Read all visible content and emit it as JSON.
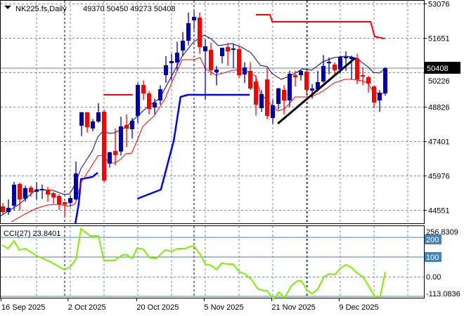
{
  "header": {
    "symbol": "NK225.fs,Daily",
    "ohlc": "49370 50450 49273 50408"
  },
  "current_price_label": "50408",
  "colors": {
    "bull": "#0000b0",
    "bear": "#ff0000",
    "ma_fast": "#000080",
    "ma_slow": "#ff0000",
    "support": "#0000ff",
    "resistance": "#ff0000",
    "trend": "#000000",
    "cci": "#80ee00",
    "level": "#4682b4"
  },
  "chart_data": [
    {
      "type": "candlestick",
      "title": "NK225.fs,Daily",
      "ylim": [
        44201,
        53246
      ],
      "y_ticks": [
        53076,
        51651,
        50226,
        48826,
        47401,
        45976,
        44551
      ],
      "x_ticks": [
        {
          "i": -0.3,
          "label": "16 Sep 2025"
        },
        {
          "i": 11.6,
          "label": "2 Oct 2025"
        },
        {
          "i": 23.8,
          "label": "20 Oct 2025"
        },
        {
          "i": 35.8,
          "label": "5 Nov 2025"
        },
        {
          "i": 47.8,
          "label": "21 Nov 2025"
        },
        {
          "i": 59.8,
          "label": "9 Dec 2025"
        }
      ],
      "candles": [
        [
          44695,
          44840,
          44376,
          44463
        ],
        [
          44463,
          44985,
          44347,
          44637
        ],
        [
          44724,
          45710,
          44550,
          45594
        ],
        [
          45623,
          45680,
          44550,
          44985
        ],
        [
          45014,
          45550,
          44900,
          45449
        ],
        [
          45478,
          45550,
          45100,
          45275
        ],
        [
          45304,
          45700,
          44985,
          45391
        ],
        [
          45362,
          45600,
          45000,
          45420
        ],
        [
          45391,
          45500,
          44900,
          45188
        ],
        [
          45246,
          45300,
          44800,
          45072
        ],
        [
          45130,
          45200,
          44550,
          44782
        ],
        [
          44869,
          44900,
          44230,
          44782
        ],
        [
          44840,
          45150,
          44700,
          45043
        ],
        [
          44985,
          46550,
          44950,
          46058
        ],
        [
          48030,
          48600,
          47600,
          48581
        ],
        [
          48581,
          48600,
          47750,
          47972
        ],
        [
          47914,
          48300,
          47800,
          48204
        ],
        [
          48204,
          48958,
          48150,
          48581
        ],
        [
          48610,
          48700,
          45700,
          45768
        ],
        [
          46464,
          46950,
          46300,
          46935
        ],
        [
          46993,
          47914,
          46400,
          46819
        ],
        [
          46964,
          48400,
          46800,
          48001
        ],
        [
          48059,
          48500,
          47150,
          47914
        ],
        [
          47885,
          48350,
          47500,
          48233
        ],
        [
          48436,
          49800,
          48150,
          49712
        ],
        [
          49712,
          49900,
          49100,
          49364
        ],
        [
          49364,
          49450,
          48500,
          48726
        ],
        [
          48784,
          49150,
          48500,
          48987
        ],
        [
          49074,
          49700,
          48900,
          49538
        ],
        [
          50118,
          50900,
          49800,
          50524
        ],
        [
          50611,
          51000,
          49900,
          50698
        ],
        [
          50640,
          51500,
          50300,
          51046
        ],
        [
          51133,
          51900,
          50900,
          51539
        ],
        [
          51539,
          52700,
          51350,
          52264
        ],
        [
          52380,
          52750,
          52000,
          52525
        ],
        [
          52496,
          52700,
          51000,
          51278
        ],
        [
          51104,
          51600,
          49100,
          51307
        ],
        [
          51162,
          51450,
          50100,
          50321
        ],
        [
          50234,
          50500,
          49700,
          50350
        ],
        [
          50901,
          51250,
          50600,
          51249
        ],
        [
          51278,
          51450,
          50500,
          51104
        ],
        [
          51162,
          51400,
          50400,
          51220
        ],
        [
          51191,
          51300,
          50000,
          50118
        ],
        [
          50147,
          50650,
          49800,
          50437
        ],
        [
          50292,
          50650,
          49500,
          49567
        ],
        [
          49857,
          50100,
          48450,
          48900
        ],
        [
          48755,
          49500,
          48600,
          49335
        ],
        [
          49944,
          50400,
          48300,
          48436
        ],
        [
          48349,
          49100,
          48100,
          48871
        ],
        [
          48929,
          49600,
          48700,
          49567
        ],
        [
          49509,
          49700,
          48500,
          49074
        ],
        [
          49074,
          50300,
          48800,
          50176
        ],
        [
          50118,
          50300,
          49650,
          50031
        ],
        [
          50118,
          50350,
          49900,
          50292
        ],
        [
          50263,
          50350,
          49300,
          49509
        ],
        [
          49480,
          49750,
          49150,
          49567
        ],
        [
          49538,
          50300,
          49450,
          49828
        ],
        [
          49857,
          50950,
          49800,
          50495
        ],
        [
          50611,
          50850,
          50150,
          50669
        ],
        [
          50553,
          50650,
          50150,
          50321
        ],
        [
          50350,
          50920,
          50200,
          50872
        ],
        [
          50814,
          51100,
          50300,
          50872
        ],
        [
          50785,
          50920,
          49944,
          50872
        ],
        [
          50814,
          51000,
          49750,
          49944
        ],
        [
          50118,
          50450,
          49700,
          50060
        ],
        [
          50031,
          50100,
          49400,
          49770
        ],
        [
          49654,
          49700,
          48750,
          48987
        ],
        [
          49074,
          49500,
          48600,
          49393
        ],
        [
          49370,
          50450,
          49273,
          50408
        ]
      ],
      "ma_fast": [
        [
          -0.5,
          44289
        ],
        [
          2.9,
          44782
        ],
        [
          5.9,
          45391
        ],
        [
          8.9,
          45362
        ],
        [
          10.9,
          45188
        ],
        [
          11.9,
          45217
        ],
        [
          12.9,
          45623
        ],
        [
          13.9,
          46261
        ],
        [
          15.9,
          46986
        ],
        [
          16.9,
          47566
        ],
        [
          17.9,
          47827
        ],
        [
          18.9,
          47711
        ],
        [
          19.9,
          47740
        ],
        [
          21.9,
          47972
        ],
        [
          23.3,
          48291
        ],
        [
          25.9,
          48842
        ],
        [
          27.9,
          49161
        ],
        [
          29.9,
          50031
        ],
        [
          31.9,
          50901
        ],
        [
          33.9,
          51481
        ],
        [
          35.8,
          51771
        ],
        [
          37,
          51626
        ],
        [
          38.3,
          51336
        ],
        [
          40.8,
          51423
        ],
        [
          42.4,
          51278
        ],
        [
          44.1,
          51046
        ],
        [
          45.8,
          50524
        ],
        [
          47,
          50466
        ],
        [
          47.9,
          50176
        ],
        [
          49.5,
          49944
        ],
        [
          51.1,
          50089
        ],
        [
          53.3,
          50379
        ],
        [
          54.9,
          50321
        ],
        [
          56.9,
          50669
        ],
        [
          58.9,
          50843
        ],
        [
          60.9,
          50901
        ],
        [
          61.9,
          50872
        ],
        [
          62.9,
          50814
        ],
        [
          64.9,
          50466
        ],
        [
          65.9,
          50234
        ],
        [
          66.9,
          50205
        ],
        [
          67.9,
          50379
        ]
      ],
      "ma_slow": [
        [
          1.5,
          44057
        ],
        [
          3.9,
          44376
        ],
        [
          5.9,
          44608
        ],
        [
          7.9,
          44753
        ],
        [
          9.9,
          44782
        ],
        [
          11.9,
          44695
        ],
        [
          12.9,
          44811
        ],
        [
          13.9,
          45681
        ],
        [
          15.9,
          46406
        ],
        [
          16.9,
          46783
        ],
        [
          17.9,
          46812
        ],
        [
          18.9,
          46493
        ],
        [
          19.9,
          46493
        ],
        [
          20.9,
          46638
        ],
        [
          21.9,
          46870
        ],
        [
          22.9,
          46899
        ],
        [
          23.9,
          47421
        ],
        [
          24.9,
          48001
        ],
        [
          26.9,
          48436
        ],
        [
          28.9,
          49161
        ],
        [
          29.9,
          49741
        ],
        [
          31.9,
          50756
        ],
        [
          33.9,
          50756
        ],
        [
          35.1,
          50843
        ],
        [
          36,
          50379
        ],
        [
          37.9,
          50118
        ],
        [
          40.9,
          50321
        ],
        [
          42.9,
          50350
        ],
        [
          44.9,
          50089
        ],
        [
          45.8,
          49364
        ],
        [
          47,
          49074
        ],
        [
          47.6,
          48929
        ],
        [
          48.9,
          48639
        ],
        [
          50.1,
          48726
        ],
        [
          52,
          49219
        ],
        [
          53.9,
          49219
        ],
        [
          55.1,
          49248
        ],
        [
          56.9,
          49451
        ],
        [
          58.9,
          49799
        ],
        [
          60.8,
          49944
        ],
        [
          61.9,
          49944
        ],
        [
          63.9,
          49886
        ],
        [
          64.9,
          49799
        ],
        [
          65.9,
          49393
        ],
        [
          66.9,
          49364
        ],
        [
          67.9,
          49364
        ]
      ],
      "support": [
        [
          [
            12.9,
            43999
          ],
          [
            13.5,
            44811
          ],
          [
            13.9,
            45826
          ],
          [
            15.9,
            45913
          ],
          [
            16.9,
            46087
          ]
        ],
        [
          [
            23.9,
            45014
          ],
          [
            28.1,
            45391
          ],
          [
            30.4,
            47421
          ],
          [
            31.6,
            49219
          ],
          [
            32.9,
            49306
          ],
          [
            43.9,
            49306
          ]
        ]
      ],
      "resistance": [
        [
          [
            17.9,
            49306
          ],
          [
            23.1,
            49306
          ]
        ],
        [
          [
            45,
            52612
          ],
          [
            47.5,
            52612
          ],
          [
            47.9,
            52322
          ],
          [
            65.4,
            52322
          ],
          [
            66.1,
            51713
          ],
          [
            67.9,
            51626
          ]
        ]
      ],
      "trendline": [
        [
          48.9,
          48117
        ],
        [
          62.6,
          50814
        ]
      ],
      "last_price": 50408
    },
    {
      "type": "line",
      "title": "CCI(27)",
      "value_label": "23.8401",
      "label": "CCI(27) 23.8401",
      "ylim": [
        -113.0836,
        256.8309
      ],
      "axis_labels": [
        "256.8309",
        "200",
        "100",
        "0.00",
        "-113.0836"
      ],
      "levels": [
        200,
        100,
        -100
      ],
      "points": [
        [
          -0.1,
          161
        ],
        [
          0.9,
          143
        ],
        [
          2,
          182
        ],
        [
          2.9,
          136
        ],
        [
          4,
          143
        ],
        [
          6,
          107
        ],
        [
          8.5,
          75
        ],
        [
          10.9,
          36
        ],
        [
          12,
          50
        ],
        [
          13,
          89
        ],
        [
          13.9,
          243
        ],
        [
          15.6,
          207
        ],
        [
          17,
          207
        ],
        [
          18,
          82
        ],
        [
          19.9,
          82
        ],
        [
          21.3,
          111
        ],
        [
          22.1,
          111
        ],
        [
          23,
          93
        ],
        [
          23.9,
          146
        ],
        [
          25,
          139
        ],
        [
          26.1,
          96
        ],
        [
          27.3,
          93
        ],
        [
          28.9,
          136
        ],
        [
          30,
          129
        ],
        [
          31.1,
          143
        ],
        [
          32.4,
          143
        ],
        [
          33.4,
          154
        ],
        [
          34,
          154
        ],
        [
          35.1,
          114
        ],
        [
          36,
          64
        ],
        [
          37.1,
          57
        ],
        [
          38,
          36
        ],
        [
          38.9,
          68
        ],
        [
          40.3,
          64
        ],
        [
          41,
          64
        ],
        [
          42,
          25
        ],
        [
          43.1,
          14
        ],
        [
          44.1,
          -11
        ],
        [
          45.3,
          -61
        ],
        [
          46.4,
          -71
        ],
        [
          47,
          -71
        ],
        [
          48.1,
          -114
        ],
        [
          49.1,
          -79
        ],
        [
          50.1,
          -107
        ],
        [
          51.3,
          -46
        ],
        [
          52.4,
          -21
        ],
        [
          53.1,
          -21
        ],
        [
          54.1,
          -71
        ],
        [
          55,
          -86
        ],
        [
          56,
          -64
        ],
        [
          57.1,
          0
        ],
        [
          58,
          14
        ],
        [
          59.1,
          11
        ],
        [
          60,
          43
        ],
        [
          61,
          61
        ],
        [
          62,
          46
        ],
        [
          63,
          18
        ],
        [
          64,
          0
        ],
        [
          65.1,
          -50
        ],
        [
          66.1,
          -100
        ],
        [
          67.1,
          -100
        ],
        [
          68,
          24
        ]
      ]
    }
  ]
}
